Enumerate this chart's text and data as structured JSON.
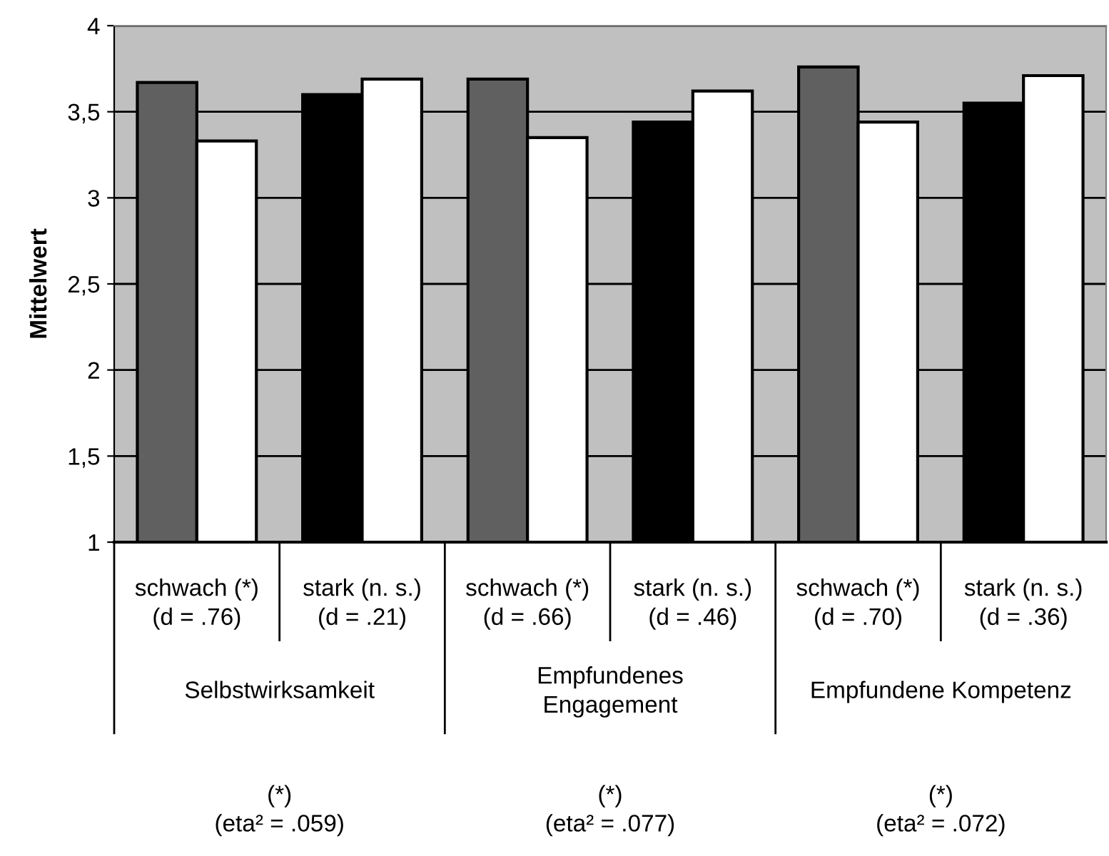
{
  "chart_data": {
    "type": "bar",
    "ylabel": "Mittelwert",
    "categories": [
      "schwach (*)\n(d = .76)",
      "stark (n. s.)\n(d = .21)",
      "schwach (*)\n(d = .66)",
      "stark (n. s.)\n(d = .46)",
      "schwach (*)\n(d = .70)",
      "stark (n. s.)\n(d = .36)"
    ],
    "series": [
      {
        "colors": [
          "#606060",
          "#000000",
          "#606060",
          "#000000",
          "#606060",
          "#000000"
        ],
        "values": [
          3.67,
          3.6,
          3.69,
          3.44,
          3.76,
          3.55
        ]
      },
      {
        "color": "#ffffff",
        "values": [
          3.33,
          3.69,
          3.35,
          3.62,
          3.44,
          3.71
        ]
      }
    ],
    "ylim": [
      1,
      4
    ],
    "yticks": [
      1,
      {
        "value": 1.5,
        "label": "1,5"
      },
      2,
      {
        "value": 2.5,
        "label": "2,5"
      },
      3,
      {
        "value": 3.5,
        "label": "3,5"
      },
      4
    ],
    "grid": "y",
    "annotations": [
      "Selbstwirksamkeit",
      "Empfundenes\nEngagement",
      "Empfundene Kompetenz",
      "(*)\n(eta² = .059)",
      "(*)\n(eta² = .077)",
      "(*)\n(eta² = .072)"
    ]
  }
}
